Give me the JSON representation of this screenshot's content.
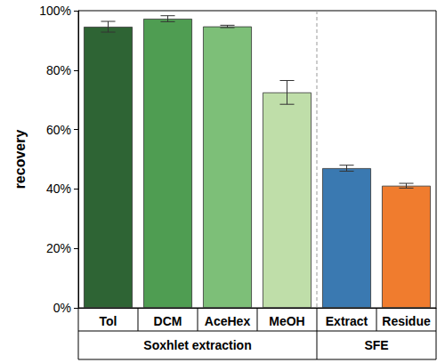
{
  "chart_data": {
    "type": "bar",
    "y_label": "recovery",
    "categories": [
      "Tol",
      "DCM",
      "AceHex",
      "MeOH",
      "Extract",
      "Residue"
    ],
    "groups": [
      "Soxhlet extraction",
      "Soxhlet extraction",
      "Soxhlet extraction",
      "Soxhlet extraction",
      "SFE",
      "SFE"
    ],
    "values": [
      94.6,
      97.3,
      94.7,
      72.5,
      47.0,
      41.1
    ],
    "errors": [
      1.8,
      1.0,
      0.4,
      4.0,
      1.0,
      0.8
    ],
    "colors": [
      "#2e6434",
      "#4f9d52",
      "#7dbf78",
      "#bfdea9",
      "#3a79b1",
      "#f07c2e"
    ],
    "ylim": [
      0,
      100
    ],
    "yticks": [
      {
        "value": 0,
        "label": "0%"
      },
      {
        "value": 20,
        "label": "20%"
      },
      {
        "value": 40,
        "label": "40%"
      },
      {
        "value": 60,
        "label": "60%"
      },
      {
        "value": 80,
        "label": "80%"
      },
      {
        "value": 100,
        "label": "100%"
      }
    ],
    "grid": false
  }
}
